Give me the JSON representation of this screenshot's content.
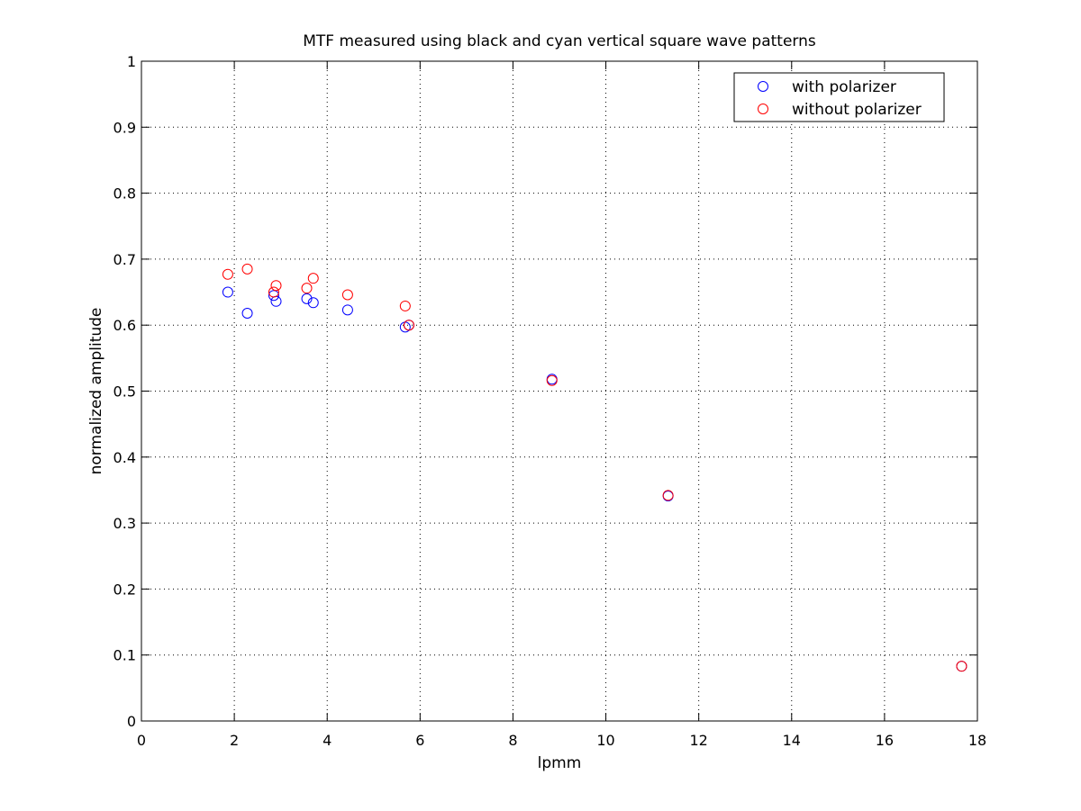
{
  "chart_data": {
    "type": "scatter",
    "title": "MTF measured using black and cyan vertical square wave patterns",
    "xlabel": "lpmm",
    "ylabel": "normalized amplitude",
    "xlim": [
      0,
      18
    ],
    "ylim": [
      0,
      1
    ],
    "xticks": [
      0,
      2,
      4,
      6,
      8,
      10,
      12,
      14,
      16,
      18
    ],
    "yticks": [
      0,
      0.1,
      0.2,
      0.3,
      0.4,
      0.5,
      0.6,
      0.7,
      0.8,
      0.9,
      1
    ],
    "grid": true,
    "legend_position": "top-right",
    "series": [
      {
        "name": "with polarizer",
        "color": "#0000ff",
        "marker": "circle",
        "points": [
          {
            "x": 1.86,
            "y": 0.65
          },
          {
            "x": 2.28,
            "y": 0.618
          },
          {
            "x": 2.85,
            "y": 0.645
          },
          {
            "x": 2.9,
            "y": 0.636
          },
          {
            "x": 3.56,
            "y": 0.64
          },
          {
            "x": 3.7,
            "y": 0.634
          },
          {
            "x": 4.44,
            "y": 0.623
          },
          {
            "x": 5.68,
            "y": 0.597
          },
          {
            "x": 5.76,
            "y": 0.6
          },
          {
            "x": 8.84,
            "y": 0.518
          },
          {
            "x": 11.34,
            "y": 0.341
          },
          {
            "x": 17.66,
            "y": 0.083
          }
        ]
      },
      {
        "name": "without polarizer",
        "color": "#ff0000",
        "marker": "circle",
        "points": [
          {
            "x": 1.86,
            "y": 0.677
          },
          {
            "x": 2.28,
            "y": 0.685
          },
          {
            "x": 2.85,
            "y": 0.65
          },
          {
            "x": 2.9,
            "y": 0.66
          },
          {
            "x": 3.56,
            "y": 0.656
          },
          {
            "x": 3.7,
            "y": 0.671
          },
          {
            "x": 4.44,
            "y": 0.646
          },
          {
            "x": 5.68,
            "y": 0.629
          },
          {
            "x": 5.76,
            "y": 0.6
          },
          {
            "x": 8.84,
            "y": 0.516
          },
          {
            "x": 11.34,
            "y": 0.342
          },
          {
            "x": 17.66,
            "y": 0.083
          }
        ]
      }
    ]
  }
}
